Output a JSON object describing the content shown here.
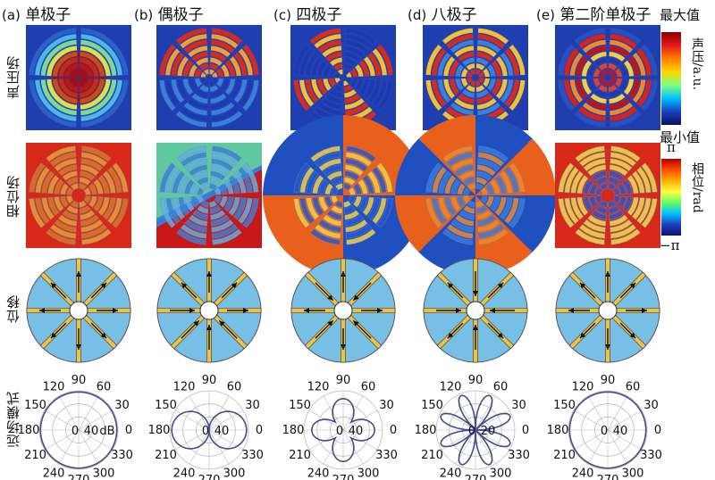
{
  "columns": [
    {
      "letter": "(a)",
      "title": "单极子"
    },
    {
      "letter": "(b)",
      "title": "偶极子"
    },
    {
      "letter": "(c)",
      "title": "四极子"
    },
    {
      "letter": "(d)",
      "title": "八极子"
    },
    {
      "letter": "(e)",
      "title": "第二阶单极子"
    }
  ],
  "rows": {
    "pressure": "声压场",
    "phase": "相位场",
    "displacement": "位移",
    "farfield": "远场模式"
  },
  "colorbars": {
    "pressure": {
      "max_label": "最大值",
      "min_label": "最小值",
      "unit": "声压/a.u."
    },
    "phase": {
      "max_label": "π",
      "min_label": "−π",
      "unit": "相位/rad"
    }
  },
  "polar": {
    "angle_labels": [
      "0",
      "30",
      "60",
      "90",
      "120",
      "150",
      "180",
      "210",
      "240",
      "270",
      "300",
      "330"
    ],
    "panels": [
      {
        "center_label": "0",
        "ring_label": "40",
        "unit": "dB",
        "pattern": "monopole"
      },
      {
        "center_label": "0",
        "ring_label": "40",
        "unit": "",
        "pattern": "dipole"
      },
      {
        "center_label": "0",
        "ring_label": "40",
        "unit": "",
        "pattern": "quadrupole"
      },
      {
        "center_label": "0",
        "ring_label": "20",
        "unit": "",
        "pattern": "octupole"
      },
      {
        "center_label": "0",
        "ring_label": "40",
        "unit": "",
        "pattern": "monopole"
      }
    ]
  }
}
